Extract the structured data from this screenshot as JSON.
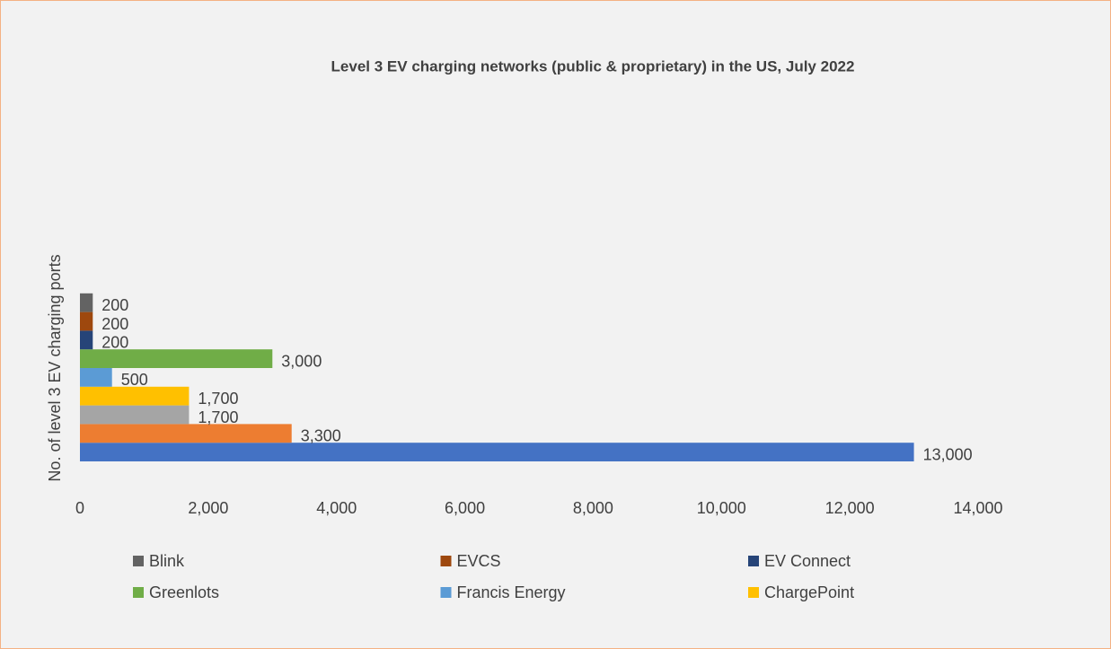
{
  "chart_data": {
    "type": "bar",
    "orientation": "horizontal",
    "title": "Level 3 EV charging networks (public & proprietary) in the US, July 2022",
    "ylabel": "No. of level 3 EV charging ports",
    "categories": [
      null
    ],
    "series": [
      {
        "name": null,
        "color": "#4472c4",
        "values": [
          13000
        ],
        "value_labels": [
          "13,000"
        ]
      },
      {
        "name": null,
        "color": "#ed7d31",
        "values": [
          3300
        ],
        "value_labels": [
          "3,300"
        ]
      },
      {
        "name": null,
        "color": "#a5a5a5",
        "values": [
          1700
        ],
        "value_labels": [
          "1,700"
        ]
      },
      {
        "name": "ChargePoint",
        "color": "#ffc000",
        "values": [
          1700
        ],
        "value_labels": [
          "1,700"
        ]
      },
      {
        "name": "Francis Energy",
        "color": "#5b9bd5",
        "values": [
          500
        ]
      },
      {
        "name": "Greenlots",
        "color": "#70ad47",
        "values": [
          3000
        ],
        "value_labels": [
          "3,000"
        ]
      },
      {
        "name": "EV Connect",
        "color": "#264478",
        "values": [
          200
        ]
      },
      {
        "name": "EVCS",
        "color": "#9e480e",
        "values": [
          200
        ]
      },
      {
        "name": "Blink",
        "color": "#636363",
        "values": [
          200
        ]
      }
    ],
    "xlim": [
      0,
      14000
    ],
    "xticks": [
      0,
      {
        "value": 2000,
        "label": "2,000"
      },
      {
        "value": 4000,
        "label": "4,000"
      },
      {
        "value": 6000,
        "label": "6,000"
      },
      {
        "value": 8000,
        "label": "8,000"
      },
      {
        "value": 10000,
        "label": "10,000"
      },
      {
        "value": 12000,
        "label": "12,000"
      },
      {
        "value": 14000,
        "label": "14,000"
      }
    ],
    "legend": "bottom"
  }
}
